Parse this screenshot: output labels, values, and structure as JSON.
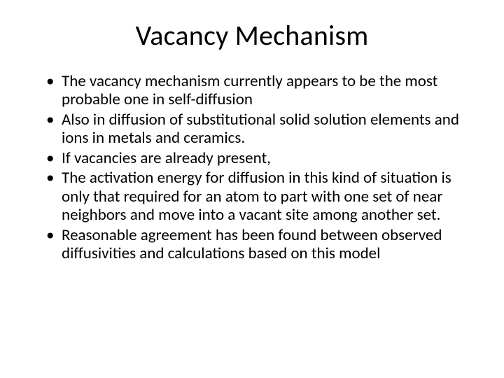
{
  "slide": {
    "title": "Vacancy Mechanism",
    "bullets": [
      "The vacancy mechanism currently appears to be the most probable one in self-diffusion",
      "Also in diffusion of substitutional solid solution elements and ions in metals and ceramics.",
      "If vacancies are already present,",
      "The activation energy for diffusion in this kind of situation is only that required for an atom to part with one set of near neighbors and move into a vacant site among another set.",
      "Reasonable agreement has been found between observed diffusivities and calculations based on this model"
    ],
    "colors": {
      "background": "#ffffff",
      "text": "#000000"
    },
    "typography": {
      "title_fontsize": 40,
      "body_fontsize": 23,
      "font_family": "Calibri"
    }
  }
}
